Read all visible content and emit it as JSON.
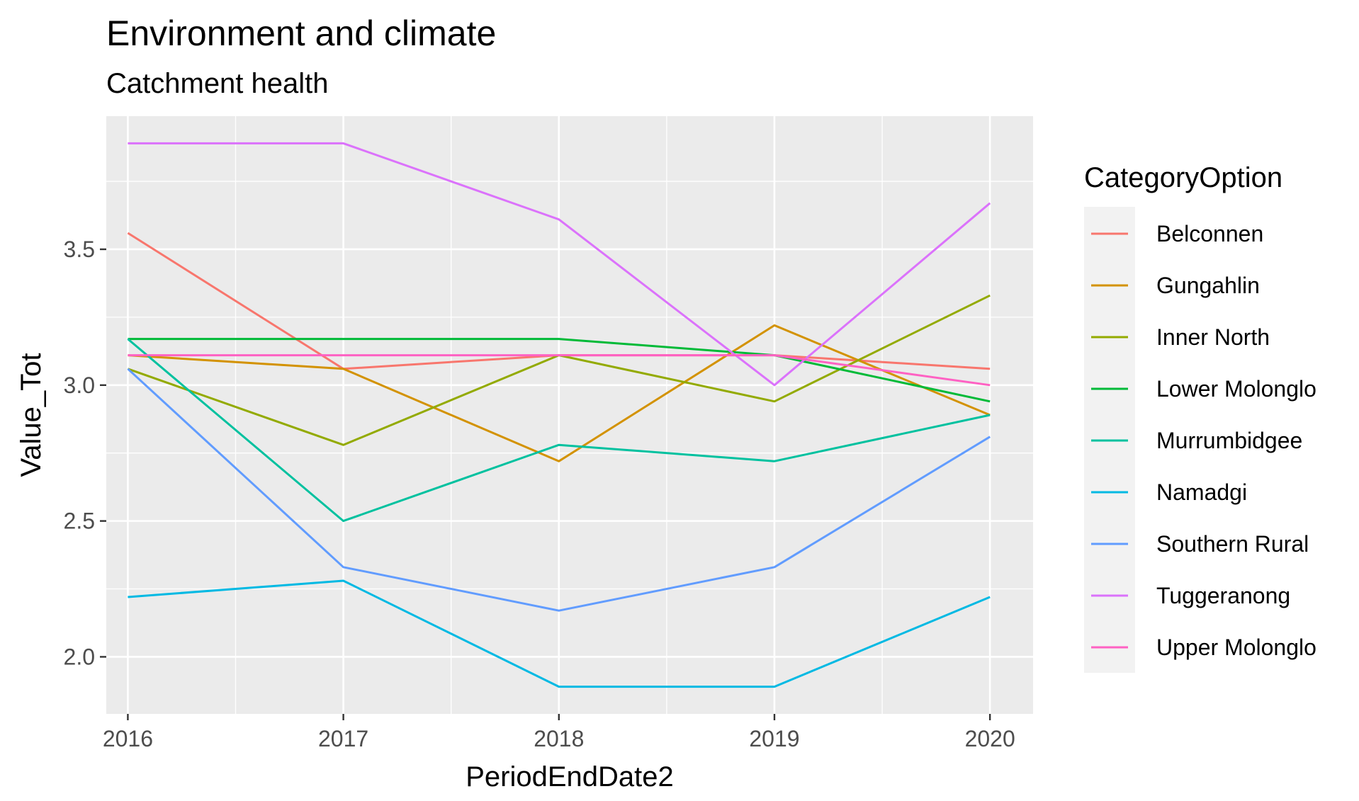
{
  "chart_data": {
    "type": "line",
    "title": "Environment and climate",
    "subtitle": "Catchment health",
    "xlabel": "PeriodEndDate2",
    "ylabel": "Value_Tot",
    "x": [
      2016,
      2017,
      2018,
      2019,
      2020
    ],
    "x_tick_labels": [
      "2016",
      "2017",
      "2018",
      "2019",
      "2020"
    ],
    "y_ticks": [
      2.0,
      2.5,
      3.0,
      3.5
    ],
    "y_tick_labels": [
      "2.0",
      "2.5",
      "3.0",
      "3.5"
    ],
    "xlim": [
      2015.9,
      2020.2
    ],
    "ylim": [
      1.79,
      3.99
    ],
    "grid": true,
    "legend_title": "CategoryOption",
    "legend_position": "right",
    "panel_color": "#ebebeb",
    "series": [
      {
        "name": "Belconnen",
        "color": "#F8766D",
        "values": [
          3.56,
          3.06,
          3.11,
          3.11,
          3.06
        ]
      },
      {
        "name": "Gungahlin",
        "color": "#D39200",
        "values": [
          3.11,
          3.06,
          2.72,
          3.22,
          2.89
        ]
      },
      {
        "name": "Inner North",
        "color": "#93AA00",
        "values": [
          3.06,
          2.78,
          3.11,
          2.94,
          3.33
        ]
      },
      {
        "name": "Lower Molonglo",
        "color": "#00BA38",
        "values": [
          3.17,
          3.17,
          3.17,
          3.11,
          2.94
        ]
      },
      {
        "name": "Murrumbidgee",
        "color": "#00C19F",
        "values": [
          3.17,
          2.5,
          2.78,
          2.72,
          2.89
        ]
      },
      {
        "name": "Namadgi",
        "color": "#00B9E3",
        "values": [
          2.22,
          2.28,
          1.89,
          1.89,
          2.22
        ]
      },
      {
        "name": "Southern Rural",
        "color": "#619CFF",
        "values": [
          3.06,
          2.33,
          2.17,
          2.33,
          2.81
        ]
      },
      {
        "name": "Tuggeranong",
        "color": "#DB72FB",
        "values": [
          3.89,
          3.89,
          3.61,
          3.0,
          3.67
        ]
      },
      {
        "name": "Upper Molonglo",
        "color": "#FF61C3",
        "values": [
          3.11,
          3.11,
          3.11,
          3.11,
          3.0
        ]
      }
    ]
  }
}
